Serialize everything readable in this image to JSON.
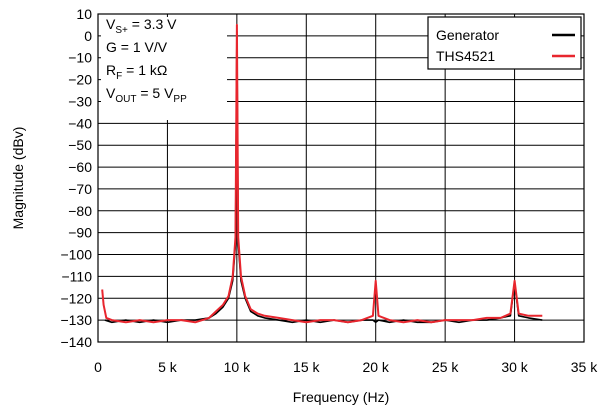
{
  "chart_data": {
    "type": "line",
    "xlabel": "Frequency (Hz)",
    "ylabel": "Magnitude (dBv)",
    "xlim": [
      0,
      35000
    ],
    "ylim": [
      -140,
      10
    ],
    "x_ticks": [
      0,
      5000,
      10000,
      15000,
      20000,
      25000,
      30000,
      35000
    ],
    "x_tick_labels": [
      "0",
      "5 k",
      "10 k",
      "15 k",
      "20 k",
      "25 k",
      "30 k",
      "35 k"
    ],
    "y_ticks": [
      10,
      0,
      -10,
      -20,
      -30,
      -40,
      -50,
      -60,
      -70,
      -80,
      -90,
      -100,
      -110,
      -120,
      -130,
      -140
    ],
    "y_tick_labels": [
      "10",
      "0",
      "−10",
      "−20",
      "−30",
      "−40",
      "−50",
      "−60",
      "−70",
      "−80",
      "−90",
      "−100",
      "−110",
      "−120",
      "−130",
      "−140"
    ],
    "grid": true,
    "legend_position": "top-right",
    "annotations": [
      {
        "main": "V",
        "sub": "S+",
        "rest": " = 3.3 V"
      },
      {
        "main": "G = 1 V/V",
        "sub": "",
        "rest": ""
      },
      {
        "main": "R",
        "sub": "F",
        "rest": " = 1 kΩ"
      },
      {
        "main": "V",
        "sub": "OUT",
        "rest": " = 5 V",
        "sub2": "PP"
      }
    ],
    "series": [
      {
        "name": "Generator",
        "color": "#000000",
        "x": [
          500,
          1000,
          2000,
          3000,
          4000,
          5000,
          6000,
          7000,
          8000,
          8500,
          9000,
          9400,
          9700,
          9900,
          10000,
          10100,
          10300,
          10600,
          11000,
          11500,
          12000,
          13000,
          14000,
          15000,
          16000,
          17000,
          18000,
          19000,
          19800,
          20000,
          20200,
          21000,
          22000,
          23000,
          24000,
          25000,
          26000,
          27000,
          28000,
          29000,
          29700,
          30000,
          30300,
          31000,
          32000
        ],
        "y": [
          -130,
          -131,
          -130,
          -131,
          -130,
          -131,
          -130,
          -130,
          -129,
          -127,
          -124,
          -120,
          -112,
          -95,
          2,
          -95,
          -112,
          -120,
          -126,
          -128,
          -129,
          -130,
          -131,
          -130,
          -131,
          -130,
          -131,
          -130,
          -130,
          -131,
          -130,
          -131,
          -130,
          -131,
          -131,
          -130,
          -131,
          -130,
          -130,
          -129,
          -128,
          -113,
          -128,
          -129,
          -130
        ]
      },
      {
        "name": "THS4521",
        "color": "#e8262e",
        "x": [
          300,
          400,
          600,
          1000,
          2000,
          3000,
          4000,
          5000,
          6000,
          7000,
          8000,
          8500,
          9000,
          9400,
          9700,
          9900,
          10000,
          10100,
          10300,
          10600,
          11000,
          11500,
          12000,
          13000,
          14000,
          15000,
          16000,
          17000,
          18000,
          19000,
          19800,
          20000,
          20200,
          21000,
          22000,
          23000,
          24000,
          25000,
          26000,
          27000,
          28000,
          29000,
          29700,
          30000,
          30300,
          31000,
          32000
        ],
        "y": [
          -116,
          -123,
          -129,
          -130,
          -131,
          -130,
          -131,
          -130,
          -130,
          -131,
          -129,
          -126,
          -123,
          -119,
          -110,
          -92,
          5,
          -92,
          -110,
          -119,
          -125,
          -127,
          -128,
          -129,
          -130,
          -131,
          -130,
          -130,
          -131,
          -130,
          -128,
          -112,
          -128,
          -130,
          -131,
          -130,
          -131,
          -130,
          -130,
          -130,
          -129,
          -129,
          -127,
          -112,
          -127,
          -128,
          -128
        ]
      }
    ]
  }
}
